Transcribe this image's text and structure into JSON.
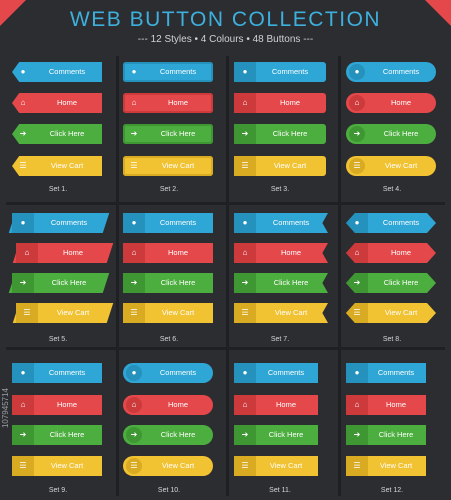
{
  "title": "WEB BUTTON COLLECTION",
  "subtitle": "--- 12 Styles • 4 Colours • 48 Buttons ---",
  "watermark": "107945714",
  "buttons": {
    "comments": "Comments",
    "home": "Home",
    "click_here": "Click Here",
    "view_cart": "View Cart"
  },
  "icons": {
    "comments": "speech-bubble-icon",
    "home": "home-icon",
    "click_here": "arrow-right-icon",
    "view_cart": "cart-icon"
  },
  "colors": {
    "blue": "#2ea6d6",
    "red": "#e5484a",
    "green": "#4cae3f",
    "yellow": "#f1c232",
    "background": "#2c2d31"
  },
  "sets": [
    {
      "label": "Set 1."
    },
    {
      "label": "Set 2."
    },
    {
      "label": "Set 3."
    },
    {
      "label": "Set 4."
    },
    {
      "label": "Set 5."
    },
    {
      "label": "Set 6."
    },
    {
      "label": "Set 7."
    },
    {
      "label": "Set 8."
    },
    {
      "label": "Set 9."
    },
    {
      "label": "Set 10."
    },
    {
      "label": "Set 11."
    },
    {
      "label": "Set 12."
    }
  ]
}
